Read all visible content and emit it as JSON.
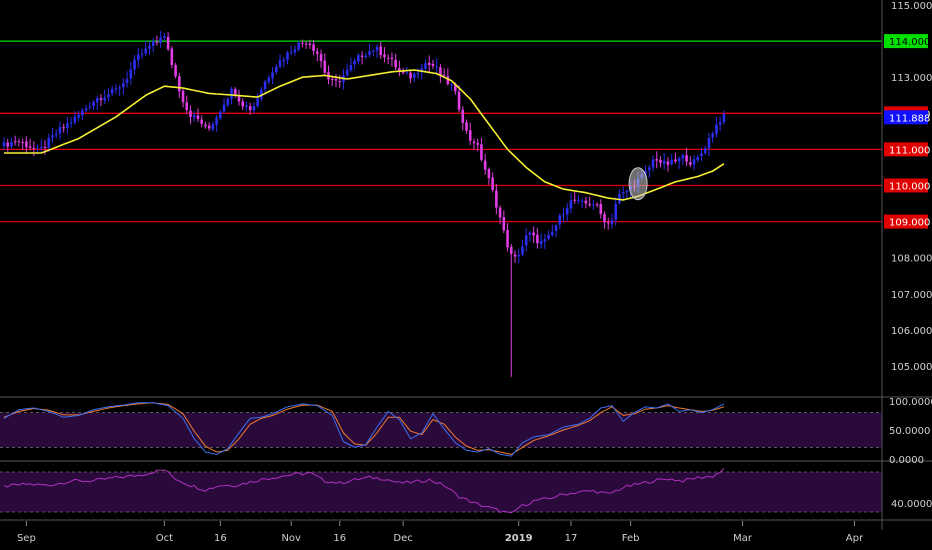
{
  "colors": {
    "background": "#000000",
    "candle_up": "#2a2ef0",
    "candle_down": "#e23ee6",
    "ma_line": "#f5f032",
    "green_level": "#00e000",
    "red_level": "#e00000",
    "osc_fill": "#2a0a3a",
    "stoch_k": "#3a6ff0",
    "stoch_d": "#f07a30",
    "rsi_line": "#b030c0",
    "price_badge": "#1010ff",
    "marker": "#c8c8c8"
  },
  "chart_data": [
    {
      "type": "candlestick",
      "ylim": [
        104.4,
        115.1
      ],
      "y_ticks": [
        {
          "value": 115,
          "label": "115.000"
        },
        {
          "value": 114,
          "label": "114.000"
        },
        {
          "value": 113,
          "label": "113.000"
        },
        {
          "value": 112,
          "label": "112.000"
        },
        {
          "value": 111,
          "label": "111.000"
        },
        {
          "value": 110,
          "label": "110.000"
        },
        {
          "value": 109,
          "label": "109.000"
        },
        {
          "value": 108,
          "label": "108.000"
        },
        {
          "value": 107,
          "label": "107.000"
        },
        {
          "value": 106,
          "label": "106.000"
        },
        {
          "value": 105,
          "label": "105.000"
        }
      ],
      "x_ticks": [
        {
          "label": "Sep",
          "bold": false,
          "index": 6
        },
        {
          "label": "Oct",
          "bold": false,
          "index": 43
        },
        {
          "label": "16",
          "bold": false,
          "index": 58
        },
        {
          "label": "Nov",
          "bold": false,
          "index": 77
        },
        {
          "label": "16",
          "bold": false,
          "index": 90
        },
        {
          "label": "Dec",
          "bold": false,
          "index": 107
        },
        {
          "label": "2019",
          "bold": true,
          "index": 138
        },
        {
          "label": "17",
          "bold": false,
          "index": 152
        },
        {
          "label": "Feb",
          "bold": false,
          "index": 168
        },
        {
          "label": "Mar",
          "bold": false,
          "index": 198
        },
        {
          "label": "Apr",
          "bold": false,
          "index": 228
        }
      ],
      "levels": [
        {
          "value": 114.0,
          "color": "#00e000",
          "label": "114.000"
        },
        {
          "value": 112.0,
          "color": "#e00000",
          "label": "112.000"
        },
        {
          "value": 111.0,
          "color": "#e00000",
          "label": "111.000"
        },
        {
          "value": 110.0,
          "color": "#e00000",
          "label": "110.000"
        },
        {
          "value": 109.0,
          "color": "#e00000",
          "label": "109.000"
        }
      ],
      "last_price": {
        "value": 111.888,
        "label": "111.888"
      },
      "keypoints": [
        [
          0,
          111.1
        ],
        [
          4,
          111.25
        ],
        [
          10,
          110.95
        ],
        [
          15,
          111.5
        ],
        [
          20,
          111.9
        ],
        [
          25,
          112.4
        ],
        [
          30,
          112.6
        ],
        [
          33,
          112.9
        ],
        [
          36,
          113.5
        ],
        [
          38,
          113.7
        ],
        [
          40,
          113.9
        ],
        [
          42,
          114.0
        ],
        [
          43,
          114.3
        ],
        [
          44,
          113.9
        ],
        [
          46,
          113.2
        ],
        [
          48,
          112.5
        ],
        [
          50,
          112.0
        ],
        [
          53,
          111.8
        ],
        [
          55,
          111.5
        ],
        [
          58,
          112.0
        ],
        [
          60,
          112.4
        ],
        [
          62,
          112.7
        ],
        [
          64,
          112.3
        ],
        [
          67,
          112.1
        ],
        [
          70,
          112.8
        ],
        [
          73,
          113.3
        ],
        [
          76,
          113.6
        ],
        [
          79,
          113.9
        ],
        [
          82,
          114.0
        ],
        [
          85,
          113.6
        ],
        [
          87,
          113.0
        ],
        [
          89,
          112.8
        ],
        [
          92,
          113.1
        ],
        [
          96,
          113.6
        ],
        [
          100,
          113.8
        ],
        [
          104,
          113.5
        ],
        [
          107,
          113.1
        ],
        [
          110,
          113.0
        ],
        [
          113,
          113.4
        ],
        [
          116,
          113.3
        ],
        [
          118,
          113.0
        ],
        [
          121,
          112.7
        ],
        [
          123,
          112.0
        ],
        [
          125,
          111.3
        ],
        [
          127,
          111.2
        ],
        [
          129,
          110.6
        ],
        [
          131,
          110.0
        ],
        [
          133,
          109.3
        ],
        [
          135,
          108.5
        ],
        [
          137,
          107.9
        ],
        [
          139,
          108.2
        ],
        [
          141,
          108.7
        ],
        [
          143,
          108.5
        ],
        [
          145,
          108.4
        ],
        [
          147,
          108.6
        ],
        [
          149,
          109.0
        ],
        [
          151,
          109.4
        ],
        [
          153,
          109.6
        ],
        [
          155,
          109.5
        ],
        [
          157,
          109.5
        ],
        [
          159,
          109.5
        ],
        [
          161,
          109.1
        ],
        [
          163,
          108.9
        ],
        [
          165,
          109.7
        ],
        [
          167,
          109.8
        ],
        [
          169,
          110.0
        ],
        [
          171,
          110.2
        ],
        [
          173,
          110.4
        ],
        [
          175,
          110.8
        ],
        [
          177,
          110.6
        ],
        [
          179,
          110.6
        ],
        [
          181,
          110.7
        ],
        [
          183,
          110.8
        ],
        [
          185,
          110.6
        ],
        [
          187,
          110.8
        ],
        [
          189,
          111.2
        ],
        [
          191,
          111.6
        ],
        [
          193,
          111.9
        ]
      ],
      "special_wick": {
        "index": 136,
        "low": 104.7
      },
      "ma_keypoints": [
        [
          0,
          110.9
        ],
        [
          10,
          110.9
        ],
        [
          20,
          111.3
        ],
        [
          30,
          111.9
        ],
        [
          38,
          112.5
        ],
        [
          43,
          112.75
        ],
        [
          48,
          112.7
        ],
        [
          55,
          112.55
        ],
        [
          62,
          112.5
        ],
        [
          68,
          112.45
        ],
        [
          74,
          112.75
        ],
        [
          80,
          113.0
        ],
        [
          86,
          113.05
        ],
        [
          92,
          112.95
        ],
        [
          98,
          113.05
        ],
        [
          104,
          113.15
        ],
        [
          110,
          113.2
        ],
        [
          116,
          113.1
        ],
        [
          120,
          112.9
        ],
        [
          125,
          112.4
        ],
        [
          130,
          111.7
        ],
        [
          135,
          111.0
        ],
        [
          140,
          110.5
        ],
        [
          145,
          110.1
        ],
        [
          150,
          109.9
        ],
        [
          156,
          109.8
        ],
        [
          162,
          109.65
        ],
        [
          166,
          109.6
        ],
        [
          170,
          109.7
        ],
        [
          175,
          109.9
        ],
        [
          180,
          110.1
        ],
        [
          186,
          110.25
        ],
        [
          190,
          110.4
        ],
        [
          193,
          110.6
        ]
      ]
    },
    {
      "type": "line",
      "name": "stochastic",
      "ylim": [
        0,
        110
      ],
      "y_ticks": [
        {
          "value": 100,
          "label": "100.0000"
        },
        {
          "value": 50,
          "label": "50.0000"
        },
        {
          "value": 0,
          "label": "0.0000"
        }
      ],
      "band": [
        20,
        80
      ],
      "k_keypoints": [
        [
          0,
          70
        ],
        [
          4,
          85
        ],
        [
          8,
          88
        ],
        [
          12,
          82
        ],
        [
          16,
          72
        ],
        [
          20,
          75
        ],
        [
          24,
          85
        ],
        [
          28,
          90
        ],
        [
          32,
          93
        ],
        [
          36,
          97
        ],
        [
          40,
          97
        ],
        [
          44,
          92
        ],
        [
          48,
          70
        ],
        [
          51,
          35
        ],
        [
          54,
          12
        ],
        [
          57,
          8
        ],
        [
          60,
          18
        ],
        [
          63,
          45
        ],
        [
          66,
          70
        ],
        [
          69,
          72
        ],
        [
          72,
          78
        ],
        [
          76,
          90
        ],
        [
          80,
          95
        ],
        [
          84,
          92
        ],
        [
          88,
          75
        ],
        [
          91,
          30
        ],
        [
          94,
          20
        ],
        [
          97,
          25
        ],
        [
          100,
          55
        ],
        [
          103,
          82
        ],
        [
          106,
          68
        ],
        [
          109,
          35
        ],
        [
          112,
          45
        ],
        [
          115,
          78
        ],
        [
          118,
          52
        ],
        [
          121,
          28
        ],
        [
          124,
          15
        ],
        [
          127,
          12
        ],
        [
          130,
          18
        ],
        [
          133,
          8
        ],
        [
          136,
          5
        ],
        [
          139,
          28
        ],
        [
          142,
          38
        ],
        [
          146,
          42
        ],
        [
          150,
          55
        ],
        [
          154,
          60
        ],
        [
          157,
          70
        ],
        [
          160,
          88
        ],
        [
          163,
          92
        ],
        [
          166,
          65
        ],
        [
          169,
          80
        ],
        [
          172,
          90
        ],
        [
          175,
          88
        ],
        [
          178,
          95
        ],
        [
          181,
          82
        ],
        [
          184,
          85
        ],
        [
          187,
          80
        ],
        [
          190,
          85
        ],
        [
          193,
          95
        ]
      ],
      "d_keypoints": [
        [
          0,
          72
        ],
        [
          4,
          82
        ],
        [
          8,
          87
        ],
        [
          12,
          84
        ],
        [
          16,
          76
        ],
        [
          20,
          76
        ],
        [
          24,
          82
        ],
        [
          28,
          88
        ],
        [
          32,
          92
        ],
        [
          36,
          95
        ],
        [
          40,
          97
        ],
        [
          44,
          94
        ],
        [
          48,
          78
        ],
        [
          51,
          48
        ],
        [
          54,
          22
        ],
        [
          57,
          12
        ],
        [
          60,
          15
        ],
        [
          63,
          35
        ],
        [
          66,
          60
        ],
        [
          69,
          70
        ],
        [
          72,
          75
        ],
        [
          76,
          86
        ],
        [
          80,
          93
        ],
        [
          84,
          93
        ],
        [
          88,
          82
        ],
        [
          91,
          45
        ],
        [
          94,
          26
        ],
        [
          97,
          24
        ],
        [
          100,
          45
        ],
        [
          103,
          72
        ],
        [
          106,
          72
        ],
        [
          109,
          48
        ],
        [
          112,
          42
        ],
        [
          115,
          68
        ],
        [
          118,
          60
        ],
        [
          121,
          38
        ],
        [
          124,
          22
        ],
        [
          127,
          15
        ],
        [
          130,
          16
        ],
        [
          133,
          12
        ],
        [
          136,
          8
        ],
        [
          139,
          20
        ],
        [
          142,
          32
        ],
        [
          146,
          40
        ],
        [
          150,
          50
        ],
        [
          154,
          58
        ],
        [
          157,
          66
        ],
        [
          160,
          80
        ],
        [
          163,
          90
        ],
        [
          166,
          75
        ],
        [
          169,
          78
        ],
        [
          172,
          86
        ],
        [
          175,
          88
        ],
        [
          178,
          92
        ],
        [
          181,
          88
        ],
        [
          184,
          85
        ],
        [
          187,
          82
        ],
        [
          190,
          84
        ],
        [
          193,
          90
        ]
      ]
    },
    {
      "type": "line",
      "name": "rsi",
      "ylim": [
        30,
        72
      ],
      "y_ticks": [
        {
          "value": 40,
          "label": "40.0000"
        }
      ],
      "band": [
        32,
        68
      ],
      "keypoints": [
        [
          0,
          55
        ],
        [
          6,
          57
        ],
        [
          12,
          56
        ],
        [
          18,
          60
        ],
        [
          24,
          60
        ],
        [
          30,
          63
        ],
        [
          36,
          65
        ],
        [
          40,
          68
        ],
        [
          43,
          70
        ],
        [
          46,
          62
        ],
        [
          50,
          56
        ],
        [
          54,
          52
        ],
        [
          58,
          56
        ],
        [
          62,
          56
        ],
        [
          66,
          59
        ],
        [
          70,
          62
        ],
        [
          74,
          64
        ],
        [
          78,
          66
        ],
        [
          82,
          67
        ],
        [
          86,
          60
        ],
        [
          90,
          58
        ],
        [
          94,
          61
        ],
        [
          98,
          63
        ],
        [
          102,
          62
        ],
        [
          106,
          58
        ],
        [
          110,
          59
        ],
        [
          114,
          61
        ],
        [
          118,
          56
        ],
        [
          122,
          46
        ],
        [
          126,
          40
        ],
        [
          130,
          36
        ],
        [
          134,
          32
        ],
        [
          136,
          30
        ],
        [
          138,
          36
        ],
        [
          142,
          42
        ],
        [
          146,
          44
        ],
        [
          150,
          48
        ],
        [
          154,
          50
        ],
        [
          158,
          51
        ],
        [
          162,
          48
        ],
        [
          166,
          54
        ],
        [
          170,
          57
        ],
        [
          174,
          60
        ],
        [
          178,
          62
        ],
        [
          182,
          60
        ],
        [
          186,
          63
        ],
        [
          190,
          64
        ],
        [
          193,
          70
        ]
      ]
    }
  ]
}
